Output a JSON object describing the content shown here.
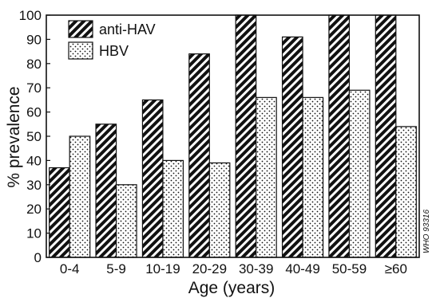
{
  "chart_data": {
    "type": "bar",
    "categories": [
      "0-4",
      "5-9",
      "10-19",
      "20-29",
      "30-39",
      "40-49",
      "50-59",
      "≥60"
    ],
    "series": [
      {
        "name": "anti-HAV",
        "values": [
          37,
          55,
          65,
          84,
          100,
          91,
          100,
          100
        ],
        "pattern": "diagonal-hatch"
      },
      {
        "name": "HBV",
        "values": [
          50,
          30,
          40,
          39,
          66,
          66,
          69,
          54
        ],
        "pattern": "dots"
      }
    ],
    "xlabel": "Age (years)",
    "ylabel": "% prevalence",
    "ylim": [
      0,
      100
    ],
    "yticks": [
      0,
      10,
      20,
      30,
      40,
      50,
      60,
      70,
      80,
      90,
      100
    ],
    "grid": false,
    "legend_position": "top-left",
    "credit": "WHO 93316",
    "colors": {
      "ink": "#111111",
      "background": "#ffffff"
    }
  }
}
